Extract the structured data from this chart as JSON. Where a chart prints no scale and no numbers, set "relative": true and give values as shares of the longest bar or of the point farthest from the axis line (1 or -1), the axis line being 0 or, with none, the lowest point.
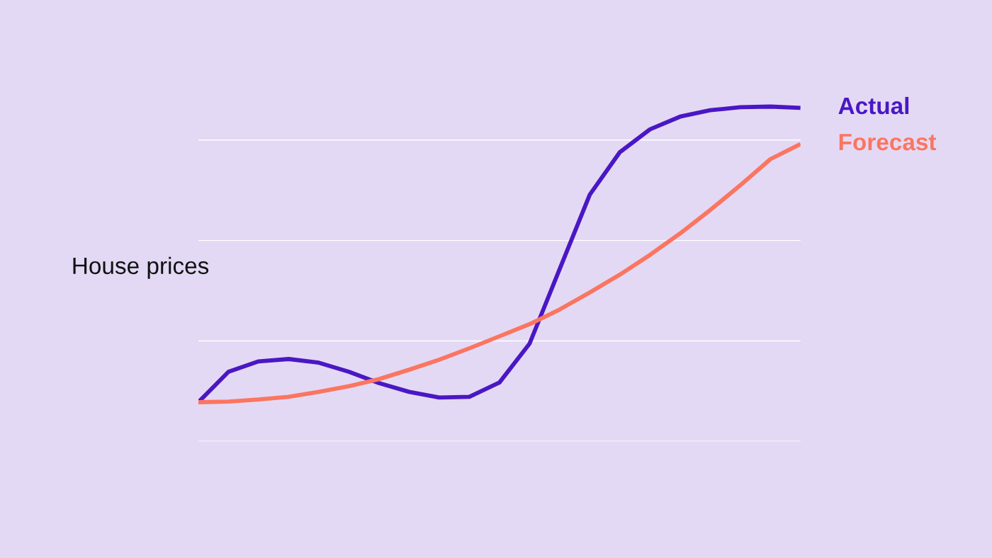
{
  "chart_data": {
    "type": "line",
    "relative": true,
    "ylabel": "House prices",
    "categories": [
      null,
      null,
      null,
      null,
      null,
      null,
      null,
      null,
      null,
      null,
      null,
      null,
      null,
      null,
      null,
      null,
      null,
      null,
      null,
      null,
      null
    ],
    "series": [
      {
        "name": "Actual",
        "color": "#4a17c4",
        "values": [
          0.117,
          0.208,
          0.239,
          0.246,
          0.235,
          0.208,
          0.174,
          0.148,
          0.131,
          0.133,
          0.176,
          0.292,
          0.515,
          0.737,
          0.864,
          0.932,
          0.97,
          0.989,
          0.998,
          1.0,
          0.996
        ]
      },
      {
        "name": "Forecast",
        "color": "#fb7560",
        "values": [
          0.117,
          0.119,
          0.125,
          0.133,
          0.148,
          0.165,
          0.186,
          0.214,
          0.244,
          0.278,
          0.314,
          0.35,
          0.394,
          0.445,
          0.498,
          0.557,
          0.621,
          0.691,
          0.765,
          0.843,
          0.888
        ]
      }
    ],
    "grid": "y",
    "legend": false,
    "line_style": "solid",
    "marker": "none"
  }
}
